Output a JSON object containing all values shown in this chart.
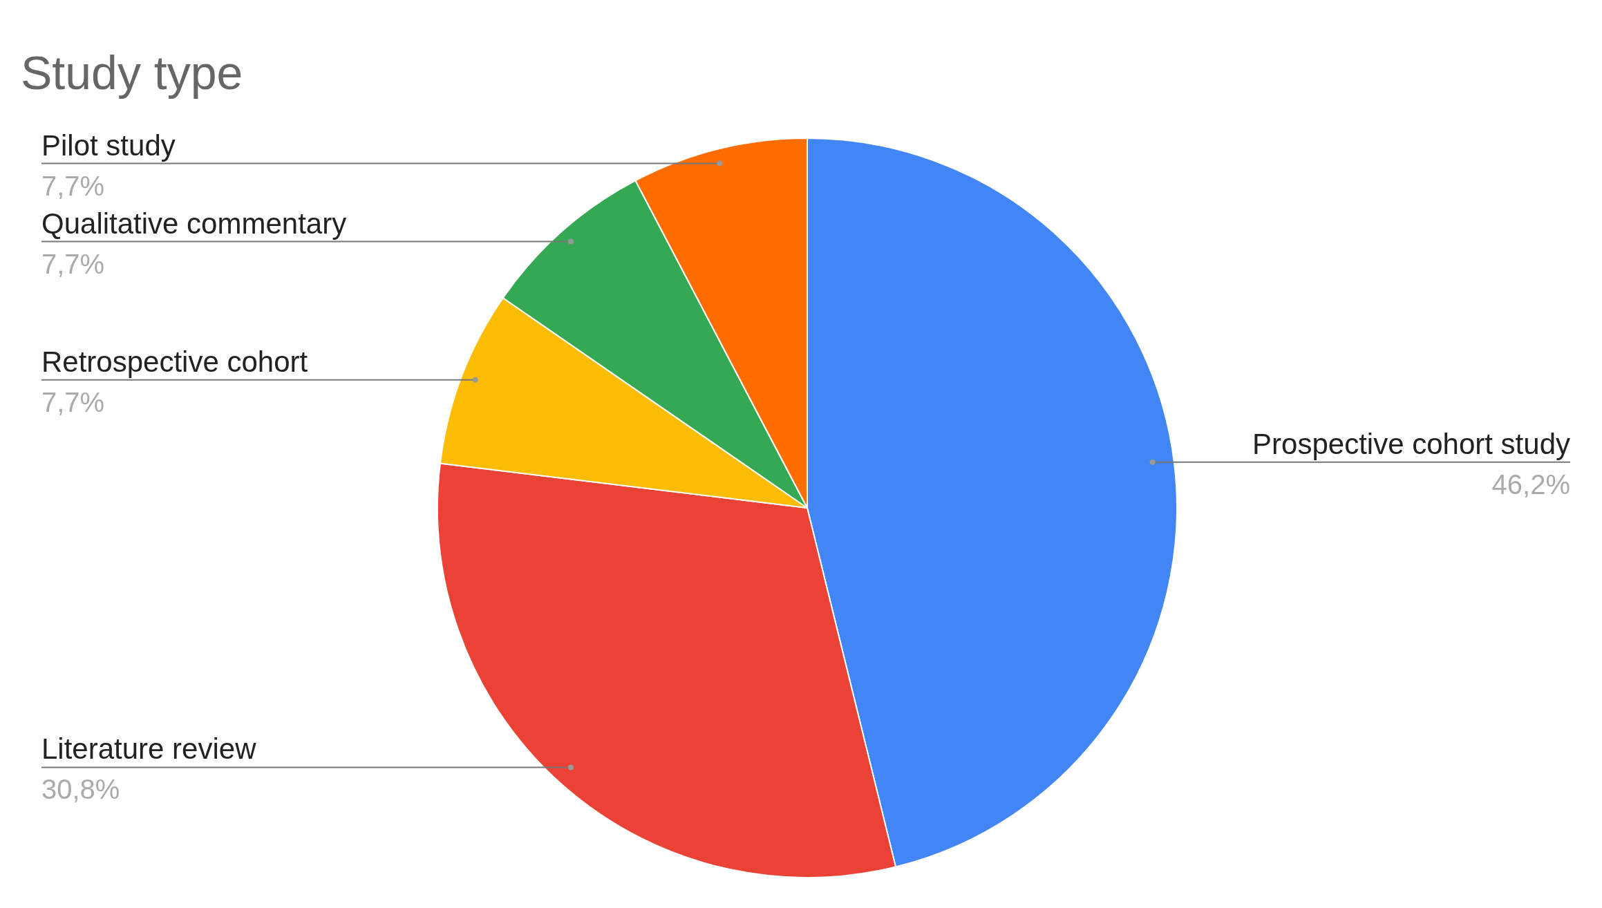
{
  "chart_data": {
    "type": "pie",
    "title": "Study type",
    "categories": [
      "Prospective cohort study",
      "Literature review",
      "Retrospective cohort",
      "Qualitative commentary",
      "Pilot study"
    ],
    "values": [
      46.2,
      30.8,
      7.7,
      7.7,
      7.7
    ],
    "colors": [
      "#4285f4",
      "#ea4335",
      "#fbbc04",
      "#34a853",
      "#ff6d01"
    ],
    "value_labels": [
      "46,2%",
      "30,8%",
      "7,7%",
      "7,7%",
      "7,7%"
    ]
  }
}
